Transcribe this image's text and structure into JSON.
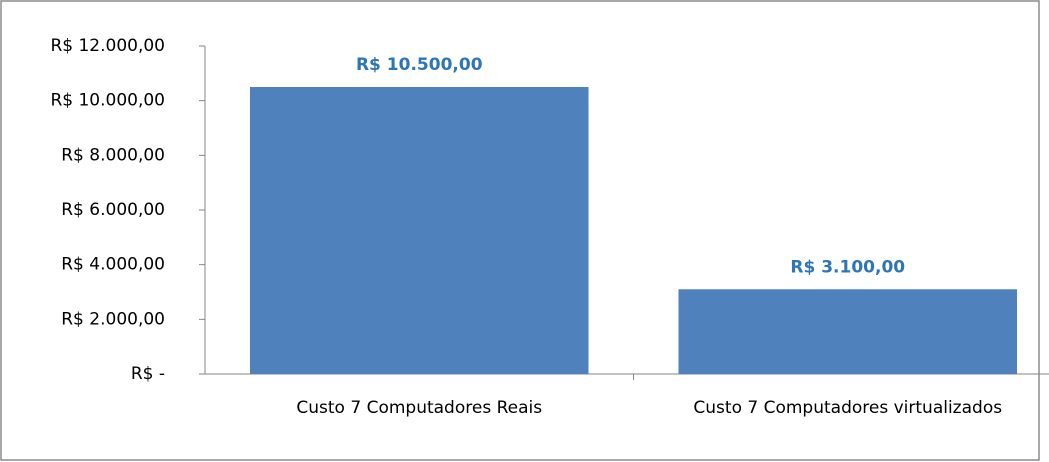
{
  "chart_data": {
    "type": "bar",
    "categories": [
      "Custo 7 Computadores Reais",
      "Custo 7  Computadores virtualizados"
    ],
    "values": [
      10500,
      3100
    ],
    "value_labels": [
      "R$ 10.500,00",
      "R$ 3.100,00"
    ],
    "color": "#4f81bd",
    "label_color": "#2e75b6",
    "ylim": [
      0,
      12000
    ],
    "yticks": [
      {
        "value": 0,
        "label": "R$ -"
      },
      {
        "value": 2000,
        "label": "R$ 2.000,00"
      },
      {
        "value": 4000,
        "label": "R$ 4.000,00"
      },
      {
        "value": 6000,
        "label": "R$ 6.000,00"
      },
      {
        "value": 8000,
        "label": "R$ 8.000,00"
      },
      {
        "value": 10000,
        "label": "R$ 10.000,00"
      },
      {
        "value": 12000,
        "label": "R$ 12.000,00"
      }
    ],
    "grid": false
  }
}
